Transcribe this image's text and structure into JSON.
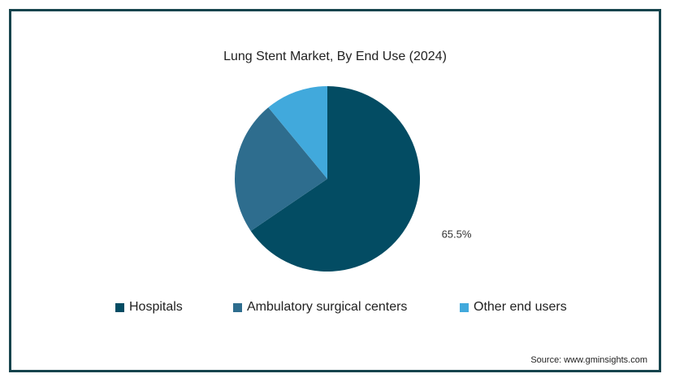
{
  "chart_data": {
    "type": "pie",
    "title": "Lung Stent Market, By End Use (2024)",
    "categories": [
      "Hospitals",
      "Ambulatory surgical centers",
      "Other end users"
    ],
    "values": [
      65.5,
      23.5,
      11.0
    ],
    "colors": [
      "#034c63",
      "#2e6d8e",
      "#41a9dc"
    ],
    "data_labels": [
      "65.5%",
      "",
      ""
    ],
    "legend_position": "bottom"
  },
  "source": "Source: www.gminsights.com"
}
